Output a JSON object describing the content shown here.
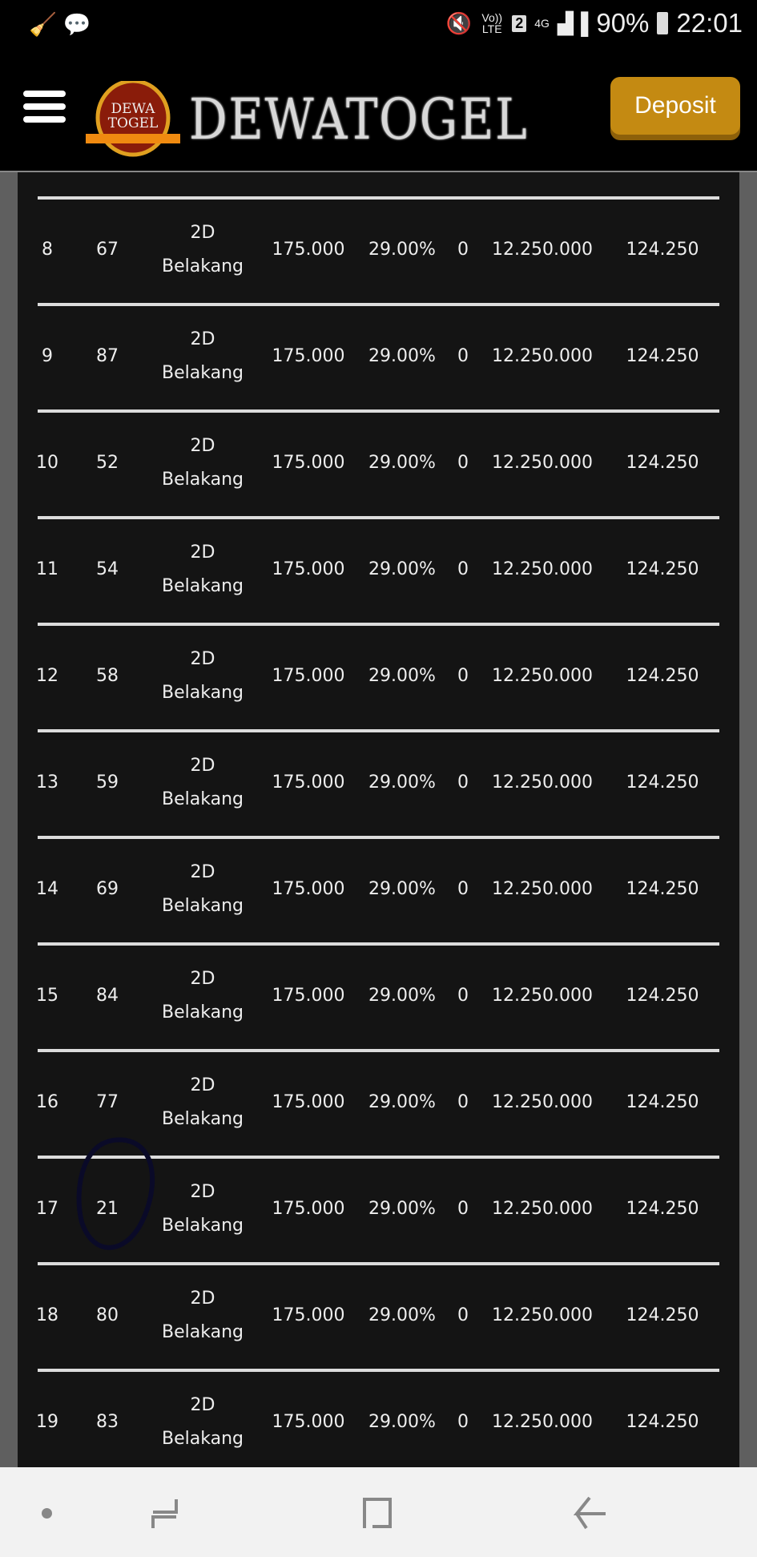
{
  "status_bar": {
    "battery": "90%",
    "time": "22:01",
    "network": "4G",
    "volte": "Vo)) LTE",
    "sim": "2"
  },
  "header": {
    "brand": "DEWATOGEL",
    "logo_text": "DEWA TOGEL",
    "deposit_label": "Deposit"
  },
  "table": {
    "rows": [
      {
        "no": "8",
        "number": "67",
        "type_line1": "2D",
        "type_line2": "Belakang",
        "bet": "175.000",
        "discount": "29.00%",
        "win": "0",
        "prize": "12.250.000",
        "pay": "124.250"
      },
      {
        "no": "9",
        "number": "87",
        "type_line1": "2D",
        "type_line2": "Belakang",
        "bet": "175.000",
        "discount": "29.00%",
        "win": "0",
        "prize": "12.250.000",
        "pay": "124.250"
      },
      {
        "no": "10",
        "number": "52",
        "type_line1": "2D",
        "type_line2": "Belakang",
        "bet": "175.000",
        "discount": "29.00%",
        "win": "0",
        "prize": "12.250.000",
        "pay": "124.250"
      },
      {
        "no": "11",
        "number": "54",
        "type_line1": "2D",
        "type_line2": "Belakang",
        "bet": "175.000",
        "discount": "29.00%",
        "win": "0",
        "prize": "12.250.000",
        "pay": "124.250"
      },
      {
        "no": "12",
        "number": "58",
        "type_line1": "2D",
        "type_line2": "Belakang",
        "bet": "175.000",
        "discount": "29.00%",
        "win": "0",
        "prize": "12.250.000",
        "pay": "124.250"
      },
      {
        "no": "13",
        "number": "59",
        "type_line1": "2D",
        "type_line2": "Belakang",
        "bet": "175.000",
        "discount": "29.00%",
        "win": "0",
        "prize": "12.250.000",
        "pay": "124.250"
      },
      {
        "no": "14",
        "number": "69",
        "type_line1": "2D",
        "type_line2": "Belakang",
        "bet": "175.000",
        "discount": "29.00%",
        "win": "0",
        "prize": "12.250.000",
        "pay": "124.250"
      },
      {
        "no": "15",
        "number": "84",
        "type_line1": "2D",
        "type_line2": "Belakang",
        "bet": "175.000",
        "discount": "29.00%",
        "win": "0",
        "prize": "12.250.000",
        "pay": "124.250"
      },
      {
        "no": "16",
        "number": "77",
        "type_line1": "2D",
        "type_line2": "Belakang",
        "bet": "175.000",
        "discount": "29.00%",
        "win": "0",
        "prize": "12.250.000",
        "pay": "124.250"
      },
      {
        "no": "17",
        "number": "21",
        "type_line1": "2D",
        "type_line2": "Belakang",
        "bet": "175.000",
        "discount": "29.00%",
        "win": "0",
        "prize": "12.250.000",
        "pay": "124.250",
        "circled": true
      },
      {
        "no": "18",
        "number": "80",
        "type_line1": "2D",
        "type_line2": "Belakang",
        "bet": "175.000",
        "discount": "29.00%",
        "win": "0",
        "prize": "12.250.000",
        "pay": "124.250"
      },
      {
        "no": "19",
        "number": "83",
        "type_line1": "2D",
        "type_line2": "Belakang",
        "bet": "175.000",
        "discount": "29.00%",
        "win": "0",
        "prize": "12.250.000",
        "pay": "124.250"
      }
    ]
  },
  "colors": {
    "deposit": "#c48a12",
    "panel": "#141414",
    "side": "#5f5f5f",
    "annotation": "#0a0a28"
  }
}
